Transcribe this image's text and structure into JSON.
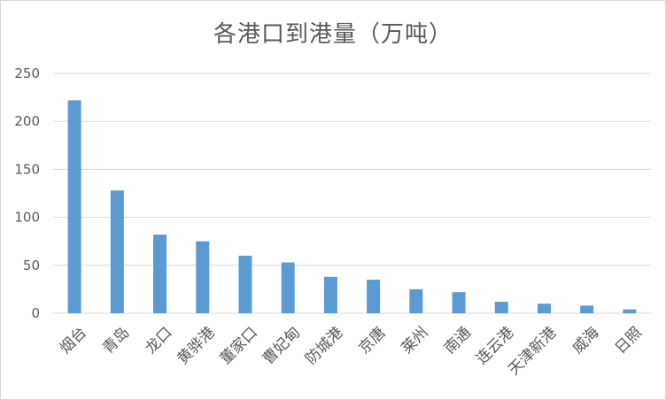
{
  "chart_data": {
    "type": "bar",
    "title": "各港口到港量（万吨）",
    "xlabel": "",
    "ylabel": "",
    "ylim": [
      0,
      250
    ],
    "yticks": [
      0,
      50,
      100,
      150,
      200,
      250
    ],
    "grid": true,
    "legend": "none",
    "bar_color": "#5b9bd5",
    "categories": [
      "烟台",
      "青岛",
      "龙口",
      "黄骅港",
      "董家口",
      "曹妃甸",
      "防城港",
      "京唐",
      "莱州",
      "南通",
      "连云港",
      "天津新港",
      "威海",
      "日照"
    ],
    "values": [
      222,
      128,
      82,
      75,
      60,
      53,
      38,
      35,
      25,
      22,
      12,
      10,
      8,
      4
    ]
  }
}
